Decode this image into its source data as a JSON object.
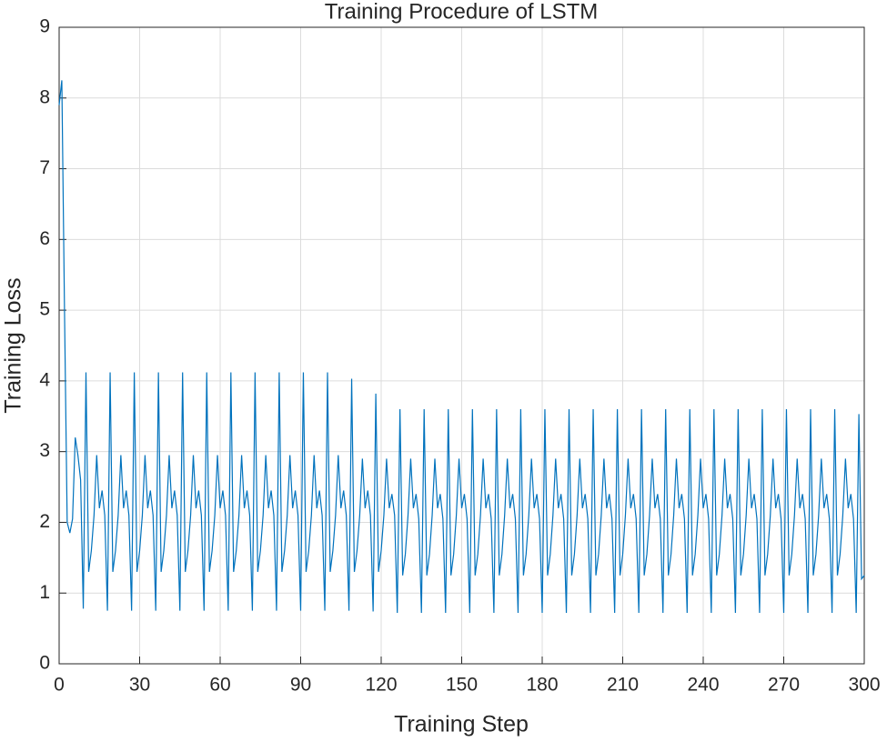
{
  "chart_data": {
    "type": "line",
    "title": "Training Procedure of LSTM",
    "xlabel": "Training Step",
    "ylabel": "Training Loss",
    "x": [
      0,
      1,
      2,
      3,
      4,
      5,
      6,
      7,
      8,
      9,
      10,
      11,
      12,
      13,
      14,
      15,
      16,
      17,
      18,
      19,
      20,
      21,
      22,
      23,
      24,
      25,
      26,
      27,
      28,
      29,
      30,
      31,
      32,
      33,
      34,
      35,
      36,
      37,
      38,
      39,
      40,
      41,
      42,
      43,
      44,
      45,
      46,
      47,
      48,
      49,
      50,
      51,
      52,
      53,
      54,
      55,
      56,
      57,
      58,
      59,
      60,
      61,
      62,
      63,
      64,
      65,
      66,
      67,
      68,
      69,
      70,
      71,
      72,
      73,
      74,
      75,
      76,
      77,
      78,
      79,
      80,
      81,
      82,
      83,
      84,
      85,
      86,
      87,
      88,
      89,
      90,
      91,
      92,
      93,
      94,
      95,
      96,
      97,
      98,
      99,
      100,
      101,
      102,
      103,
      104,
      105,
      106,
      107,
      108,
      109,
      110,
      111,
      112,
      113,
      114,
      115,
      116,
      117,
      118,
      119,
      120,
      121,
      122,
      123,
      124,
      125,
      126,
      127,
      128,
      129,
      130,
      131,
      132,
      133,
      134,
      135,
      136,
      137,
      138,
      139,
      140,
      141,
      142,
      143,
      144,
      145,
      146,
      147,
      148,
      149,
      150,
      151,
      152,
      153,
      154,
      155,
      156,
      157,
      158,
      159,
      160,
      161,
      162,
      163,
      164,
      165,
      166,
      167,
      168,
      169,
      170,
      171,
      172,
      173,
      174,
      175,
      176,
      177,
      178,
      179,
      180,
      181,
      182,
      183,
      184,
      185,
      186,
      187,
      188,
      189,
      190,
      191,
      192,
      193,
      194,
      195,
      196,
      197,
      198,
      199,
      200,
      201,
      202,
      203,
      204,
      205,
      206,
      207,
      208,
      209,
      210,
      211,
      212,
      213,
      214,
      215,
      216,
      217,
      218,
      219,
      220,
      221,
      222,
      223,
      224,
      225,
      226,
      227,
      228,
      229,
      230,
      231,
      232,
      233,
      234,
      235,
      236,
      237,
      238,
      239,
      240,
      241,
      242,
      243,
      244,
      245,
      246,
      247,
      248,
      249,
      250,
      251,
      252,
      253,
      254,
      255,
      256,
      257,
      258,
      259,
      260,
      261,
      262,
      263,
      264,
      265,
      266,
      267,
      268,
      269,
      270,
      271,
      272,
      273,
      274,
      275,
      276,
      277,
      278,
      279,
      280,
      281,
      282,
      283,
      284,
      285,
      286,
      287,
      288,
      289,
      290,
      291,
      292,
      293,
      294,
      295,
      296,
      297,
      298,
      299,
      300
    ],
    "series": [
      {
        "name": "Training Loss",
        "color": "#0072bd",
        "values": [
          7.9,
          8.25,
          5.0,
          2.0,
          1.85,
          2.05,
          3.2,
          2.95,
          2.6,
          0.78,
          4.12,
          1.3,
          1.6,
          2.1,
          2.95,
          2.2,
          2.45,
          2.1,
          0.75,
          4.12,
          1.3,
          1.6,
          2.1,
          2.95,
          2.2,
          2.45,
          2.1,
          0.75,
          4.12,
          1.3,
          1.6,
          2.1,
          2.95,
          2.2,
          2.45,
          2.1,
          0.75,
          4.12,
          1.3,
          1.6,
          2.1,
          2.95,
          2.2,
          2.45,
          2.1,
          0.75,
          4.12,
          1.3,
          1.6,
          2.1,
          2.95,
          2.2,
          2.45,
          2.1,
          0.75,
          4.12,
          1.3,
          1.6,
          2.1,
          2.95,
          2.2,
          2.45,
          2.1,
          0.75,
          4.12,
          1.3,
          1.6,
          2.1,
          2.95,
          2.2,
          2.45,
          2.1,
          0.75,
          4.12,
          1.3,
          1.6,
          2.1,
          2.95,
          2.2,
          2.45,
          2.1,
          0.75,
          4.12,
          1.3,
          1.6,
          2.1,
          2.95,
          2.2,
          2.45,
          2.1,
          0.75,
          4.12,
          1.3,
          1.6,
          2.1,
          2.95,
          2.2,
          2.45,
          2.1,
          0.75,
          4.12,
          1.3,
          1.6,
          2.1,
          2.95,
          2.2,
          2.45,
          2.1,
          0.75,
          4.03,
          1.3,
          1.6,
          2.1,
          2.9,
          2.2,
          2.45,
          2.1,
          0.74,
          3.82,
          1.3,
          1.6,
          2.1,
          2.9,
          2.2,
          2.4,
          2.1,
          0.72,
          3.6,
          1.25,
          1.55,
          2.1,
          2.9,
          2.2,
          2.4,
          2.05,
          0.72,
          3.6,
          1.25,
          1.55,
          2.1,
          2.9,
          2.2,
          2.4,
          2.05,
          0.72,
          3.6,
          1.25,
          1.55,
          2.1,
          2.9,
          2.2,
          2.4,
          2.05,
          0.72,
          3.6,
          1.25,
          1.55,
          2.1,
          2.9,
          2.2,
          2.4,
          2.05,
          0.72,
          3.6,
          1.25,
          1.55,
          2.1,
          2.9,
          2.2,
          2.4,
          2.05,
          0.72,
          3.6,
          1.25,
          1.55,
          2.1,
          2.9,
          2.2,
          2.4,
          2.05,
          0.72,
          3.6,
          1.25,
          1.55,
          2.1,
          2.9,
          2.2,
          2.4,
          2.05,
          0.72,
          3.6,
          1.25,
          1.55,
          2.1,
          2.9,
          2.2,
          2.4,
          2.05,
          0.72,
          3.6,
          1.25,
          1.55,
          2.1,
          2.9,
          2.2,
          2.4,
          2.05,
          0.72,
          3.6,
          1.25,
          1.55,
          2.1,
          2.9,
          2.2,
          2.4,
          2.05,
          0.72,
          3.6,
          1.25,
          1.55,
          2.1,
          2.9,
          2.2,
          2.4,
          2.05,
          0.72,
          3.6,
          1.25,
          1.55,
          2.1,
          2.9,
          2.2,
          2.4,
          2.05,
          0.72,
          3.6,
          1.25,
          1.55,
          2.1,
          2.9,
          2.2,
          2.4,
          2.05,
          0.72,
          3.6,
          1.25,
          1.55,
          2.1,
          2.9,
          2.2,
          2.4,
          2.05,
          0.72,
          3.6,
          1.25,
          1.55,
          2.1,
          2.9,
          2.2,
          2.4,
          2.05,
          0.72,
          3.6,
          1.25,
          1.55,
          2.1,
          2.9,
          2.2,
          2.4,
          2.05,
          0.72,
          3.6,
          1.25,
          1.55,
          2.1,
          2.9,
          2.2,
          2.4,
          2.05,
          0.72,
          3.6,
          1.25,
          1.55,
          2.1,
          2.9,
          2.2,
          2.4,
          2.05,
          0.72,
          3.6,
          1.25,
          1.55,
          2.1,
          2.9,
          2.2,
          2.4,
          2.05,
          0.72,
          3.53,
          1.2,
          1.25
        ]
      }
    ],
    "xlim": [
      0,
      300
    ],
    "xticks": [
      0,
      30,
      60,
      90,
      120,
      150,
      180,
      210,
      240,
      270,
      300
    ],
    "ylim": [
      0,
      9
    ],
    "yticks": [
      0,
      1,
      2,
      3,
      4,
      5,
      6,
      7,
      8,
      9
    ],
    "grid": true
  }
}
